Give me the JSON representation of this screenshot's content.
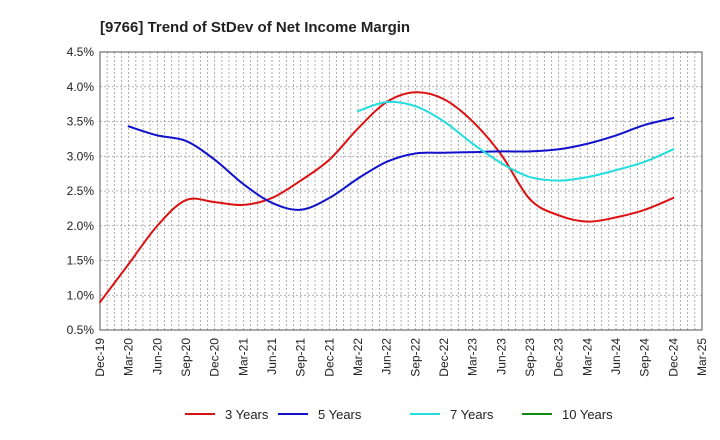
{
  "chart_data": {
    "type": "line",
    "title": "[9766]  Trend of StDev of Net Income Margin",
    "xlabel": "",
    "ylabel": "",
    "ylim": [
      0.5,
      4.5
    ],
    "y_ticks": [
      "0.5%",
      "1.0%",
      "1.5%",
      "2.0%",
      "2.5%",
      "3.0%",
      "3.5%",
      "4.0%",
      "4.5%"
    ],
    "y_tick_values": [
      0.5,
      1.0,
      1.5,
      2.0,
      2.5,
      3.0,
      3.5,
      4.0,
      4.5
    ],
    "x_ticks": [
      "Dec-19",
      "Mar-20",
      "Jun-20",
      "Sep-20",
      "Dec-20",
      "Mar-21",
      "Jun-21",
      "Sep-21",
      "Dec-21",
      "Mar-22",
      "Jun-22",
      "Sep-22",
      "Dec-22",
      "Mar-23",
      "Jun-23",
      "Sep-23",
      "Dec-23",
      "Mar-24",
      "Jun-24",
      "Sep-24",
      "Dec-24",
      "Mar-25"
    ],
    "grid": true,
    "legend_position": "bottom",
    "series": [
      {
        "name": "3 Years",
        "color": "#dd1111",
        "points": [
          [
            0,
            0.9
          ],
          [
            1,
            1.45
          ],
          [
            2,
            2.0
          ],
          [
            3,
            2.37
          ],
          [
            4,
            2.34
          ],
          [
            5,
            2.3
          ],
          [
            6,
            2.4
          ],
          [
            7,
            2.65
          ],
          [
            8,
            2.95
          ],
          [
            9,
            3.4
          ],
          [
            10,
            3.78
          ],
          [
            11,
            3.92
          ],
          [
            12,
            3.82
          ],
          [
            13,
            3.5
          ],
          [
            14,
            3.02
          ],
          [
            15,
            2.38
          ],
          [
            16,
            2.15
          ],
          [
            17,
            2.06
          ],
          [
            18,
            2.12
          ],
          [
            19,
            2.23
          ],
          [
            20,
            2.4
          ]
        ]
      },
      {
        "name": "5 Years",
        "color": "#1111cc",
        "points": [
          [
            1,
            3.43
          ],
          [
            2,
            3.3
          ],
          [
            3,
            3.22
          ],
          [
            4,
            2.95
          ],
          [
            5,
            2.6
          ],
          [
            6,
            2.33
          ],
          [
            7,
            2.23
          ],
          [
            8,
            2.4
          ],
          [
            9,
            2.68
          ],
          [
            10,
            2.92
          ],
          [
            11,
            3.04
          ],
          [
            12,
            3.05
          ],
          [
            13,
            3.06
          ],
          [
            14,
            3.07
          ],
          [
            15,
            3.07
          ],
          [
            16,
            3.1
          ],
          [
            17,
            3.18
          ],
          [
            18,
            3.3
          ],
          [
            19,
            3.45
          ],
          [
            20,
            3.55
          ]
        ]
      },
      {
        "name": "7 Years",
        "color": "#22dddd",
        "points": [
          [
            9,
            3.65
          ],
          [
            10,
            3.78
          ],
          [
            11,
            3.72
          ],
          [
            12,
            3.5
          ],
          [
            13,
            3.18
          ],
          [
            14,
            2.9
          ],
          [
            15,
            2.7
          ],
          [
            16,
            2.65
          ],
          [
            17,
            2.7
          ],
          [
            18,
            2.8
          ],
          [
            19,
            2.92
          ],
          [
            20,
            3.1
          ]
        ]
      },
      {
        "name": "10 Years",
        "color": "#118811",
        "points": []
      }
    ]
  }
}
